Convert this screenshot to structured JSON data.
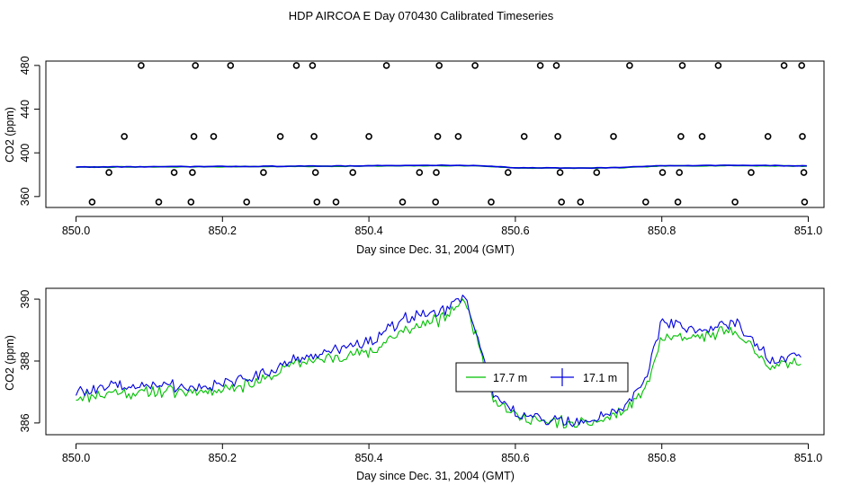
{
  "title": "HDP AIRCOA E  Day 070430  Calibrated Timeseries",
  "colors": {
    "green": "#00c000",
    "blue": "#0000e0",
    "axis": "#000000"
  },
  "chart_data": [
    {
      "type": "scatter",
      "xlabel": "Day since Dec. 31, 2004 (GMT)",
      "ylabel": "CO2 (ppm)",
      "xlim": [
        850.0,
        851.0
      ],
      "ylim": [
        350,
        484
      ],
      "xticks": [
        "850.0",
        "850.2",
        "850.4",
        "850.6",
        "850.8",
        "851.0"
      ],
      "yticks": [
        "360",
        "400",
        "440",
        "480"
      ],
      "calibration_points": [
        [
          850.022,
          355
        ],
        [
          850.045,
          382
        ],
        [
          850.066,
          415
        ],
        [
          850.089,
          480
        ],
        [
          850.113,
          355
        ],
        [
          850.134,
          382
        ],
        [
          850.157,
          355
        ],
        [
          850.159,
          382
        ],
        [
          850.161,
          415
        ],
        [
          850.163,
          480
        ],
        [
          850.188,
          415
        ],
        [
          850.211,
          480
        ],
        [
          850.233,
          355
        ],
        [
          850.256,
          382
        ],
        [
          850.279,
          415
        ],
        [
          850.301,
          480
        ],
        [
          850.323,
          480
        ],
        [
          850.325,
          415
        ],
        [
          850.327,
          382
        ],
        [
          850.329,
          355
        ],
        [
          850.355,
          355
        ],
        [
          850.378,
          382
        ],
        [
          850.4,
          415
        ],
        [
          850.424,
          480
        ],
        [
          850.446,
          355
        ],
        [
          850.469,
          382
        ],
        [
          850.491,
          355
        ],
        [
          850.492,
          382
        ],
        [
          850.494,
          415
        ],
        [
          850.496,
          480
        ],
        [
          850.522,
          415
        ],
        [
          850.545,
          480
        ],
        [
          850.567,
          355
        ],
        [
          850.59,
          382
        ],
        [
          850.612,
          415
        ],
        [
          850.634,
          480
        ],
        [
          850.656,
          480
        ],
        [
          850.658,
          415
        ],
        [
          850.661,
          382
        ],
        [
          850.663,
          355
        ],
        [
          850.689,
          355
        ],
        [
          850.711,
          382
        ],
        [
          850.734,
          415
        ],
        [
          850.756,
          480
        ],
        [
          850.778,
          355
        ],
        [
          850.801,
          382
        ],
        [
          850.822,
          355
        ],
        [
          850.824,
          382
        ],
        [
          850.826,
          415
        ],
        [
          850.828,
          480
        ],
        [
          850.855,
          415
        ],
        [
          850.877,
          480
        ],
        [
          850.9,
          355
        ],
        [
          850.922,
          382
        ],
        [
          850.945,
          415
        ],
        [
          850.967,
          480
        ],
        [
          850.991,
          480
        ],
        [
          850.992,
          415
        ],
        [
          850.994,
          382
        ],
        [
          850.995,
          355
        ]
      ],
      "series": [
        {
          "color": "green",
          "x": [
            850.0,
            850.3,
            850.5,
            850.55,
            850.6,
            850.7,
            850.75,
            850.8,
            850.9,
            850.99
          ],
          "values": [
            386.9,
            387.6,
            388.3,
            388.2,
            386.2,
            386.0,
            386.5,
            388.0,
            388.4,
            387.9
          ]
        },
        {
          "color": "blue",
          "x": [
            850.0,
            850.3,
            850.5,
            850.55,
            850.6,
            850.7,
            850.75,
            850.8,
            850.9,
            850.99
          ],
          "values": [
            387.0,
            387.8,
            388.6,
            388.4,
            386.3,
            386.1,
            386.7,
            388.3,
            388.6,
            388.1
          ]
        }
      ]
    },
    {
      "type": "line",
      "xlabel": "Day since Dec. 31, 2004 (GMT)",
      "ylabel": "CO2 (ppm)",
      "xlim": [
        850.0,
        851.0
      ],
      "ylim": [
        385.62,
        390.35
      ],
      "xticks": [
        "850.0",
        "850.2",
        "850.4",
        "850.6",
        "850.8",
        "851.0"
      ],
      "yticks": [
        "386",
        "388",
        "390"
      ],
      "legend_position": "center-right",
      "series": [
        {
          "name": "17.7 m",
          "color": "green",
          "x": [
            850.0,
            850.05,
            850.1,
            850.15,
            850.2,
            850.25,
            850.3,
            850.35,
            850.4,
            850.45,
            850.5,
            850.53,
            850.55,
            850.57,
            850.6,
            850.65,
            850.7,
            850.75,
            850.78,
            850.8,
            850.85,
            850.9,
            850.95,
            850.99
          ],
          "values": [
            386.85,
            386.95,
            387.0,
            387.0,
            387.1,
            387.3,
            387.95,
            388.1,
            388.3,
            389.0,
            389.35,
            390.0,
            388.6,
            386.8,
            386.2,
            386.05,
            385.95,
            386.4,
            387.2,
            388.7,
            388.8,
            389.0,
            387.8,
            388.0
          ]
        },
        {
          "name": "17.1 m",
          "color": "blue",
          "x": [
            850.0,
            850.05,
            850.1,
            850.15,
            850.2,
            850.25,
            850.3,
            850.35,
            850.4,
            850.45,
            850.5,
            850.53,
            850.55,
            850.57,
            850.6,
            850.65,
            850.7,
            850.75,
            850.78,
            850.8,
            850.85,
            850.9,
            850.95,
            850.99
          ],
          "values": [
            387.0,
            387.15,
            387.25,
            387.15,
            387.25,
            387.5,
            388.1,
            388.3,
            388.6,
            389.4,
            389.6,
            390.1,
            388.7,
            387.0,
            386.3,
            386.1,
            386.05,
            386.6,
            387.5,
            389.3,
            389.0,
            389.3,
            388.0,
            388.2
          ]
        }
      ]
    }
  ]
}
